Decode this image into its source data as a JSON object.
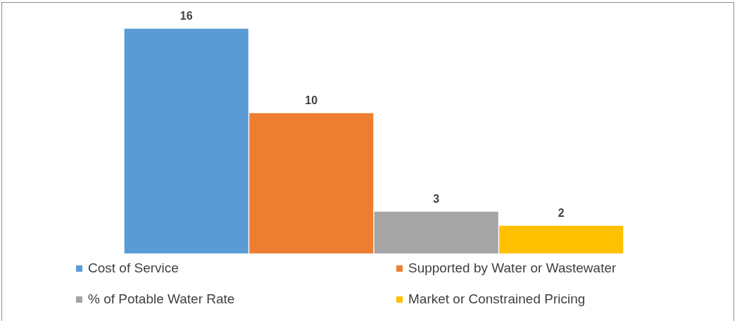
{
  "chart_data": {
    "type": "bar",
    "categories": [
      null
    ],
    "series": [
      {
        "name": "Cost of Service",
        "color": "#5b9bd5",
        "values": [
          16
        ]
      },
      {
        "name": "Supported by Water or Wastewater",
        "color": "#ed7d31",
        "values": [
          10
        ]
      },
      {
        "name": "% of Potable Water Rate",
        "color": "#a5a5a5",
        "values": [
          3
        ]
      },
      {
        "name": "Market or Constrained Pricing",
        "color": "#ffc000",
        "values": [
          2
        ]
      }
    ],
    "relative": false,
    "data_labels": true,
    "legend": "bottom",
    "grid": false
  }
}
